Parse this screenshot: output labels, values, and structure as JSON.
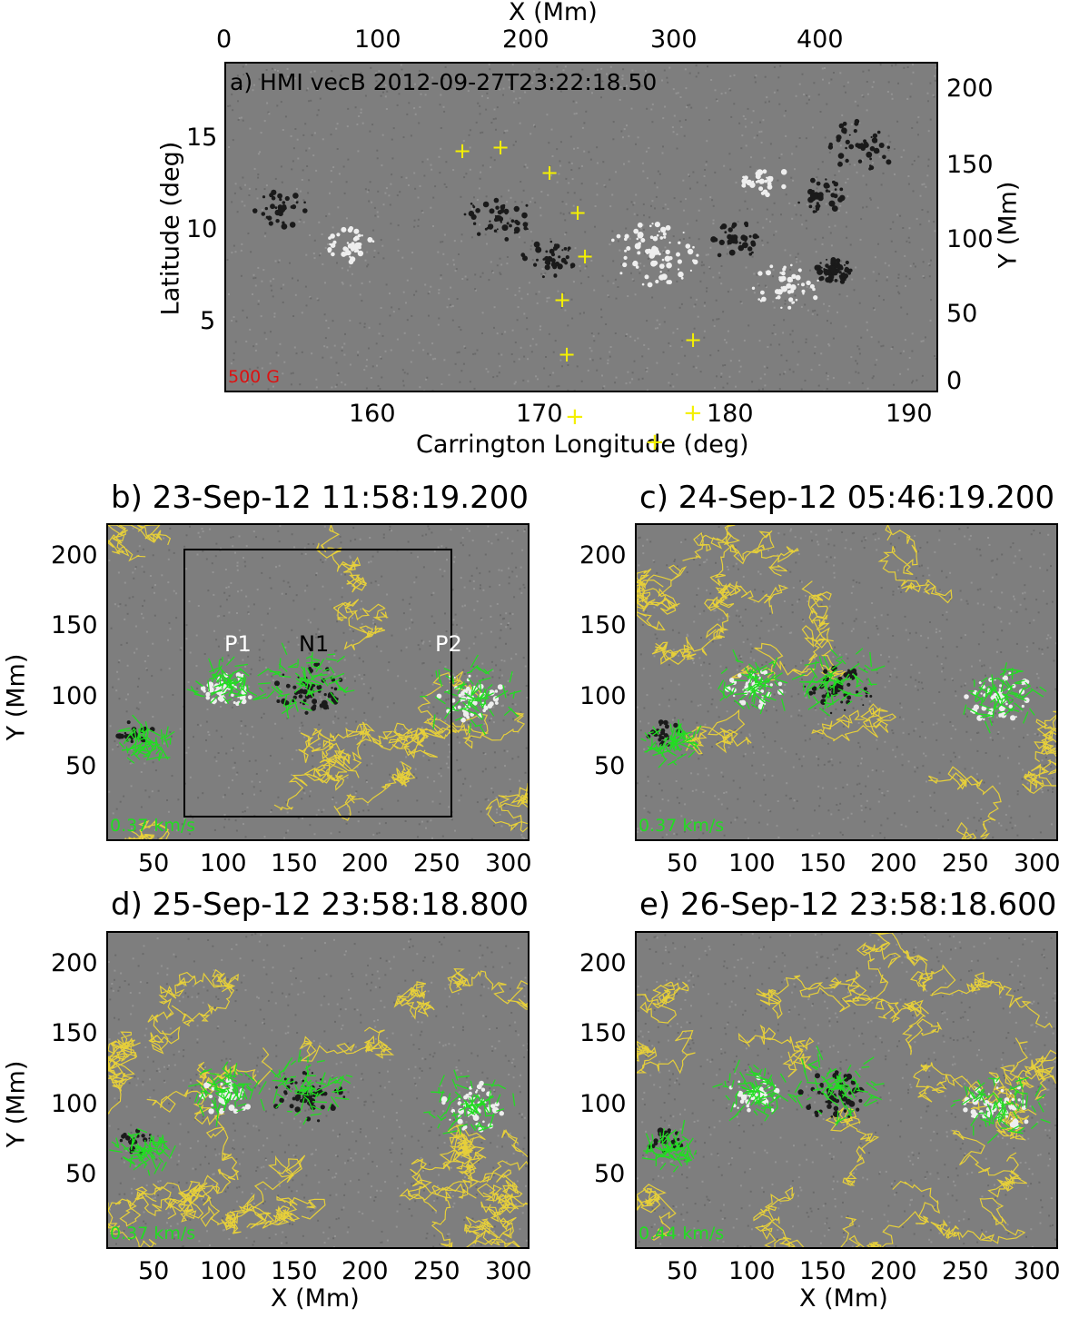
{
  "panel_a": {
    "title": "a) HMI vecB 2012-09-27T23:22:18.50",
    "scale_label": "500 G",
    "top_axis_title": "X (Mm)",
    "top_ticks": [
      "0",
      "100",
      "200",
      "300",
      "400"
    ],
    "bottom_axis_title": "Carrington Longitude (deg)",
    "bottom_ticks": [
      "160",
      "170",
      "180",
      "190"
    ],
    "left_axis_title": "Latitude (deg)",
    "left_ticks": [
      "15",
      "10",
      "5"
    ],
    "right_axis_title": "Y (Mm)",
    "right_ticks": [
      "200",
      "150",
      "100",
      "50",
      "0"
    ],
    "colors": {
      "positive_vectors": "#dd1111",
      "negative_vectors": "#1122dd",
      "markers": "#f4f000"
    }
  },
  "panel_b": {
    "title": "b) 23-Sep-12 11:58:19.200",
    "scale_label": "0.37 km/s",
    "labels": {
      "p1": "P1",
      "n1": "N1",
      "p2": "P2"
    },
    "y_axis_title": "Y (Mm)",
    "y_ticks": [
      "200",
      "150",
      "100",
      "50"
    ],
    "x_ticks": [
      "50",
      "100",
      "150",
      "200",
      "250",
      "300"
    ]
  },
  "panel_c": {
    "title": "c) 24-Sep-12 05:46:19.200",
    "scale_label": "0.37 km/s",
    "y_ticks": [
      "200",
      "150",
      "100",
      "50"
    ],
    "x_ticks": [
      "50",
      "100",
      "150",
      "200",
      "250",
      "300"
    ]
  },
  "panel_d": {
    "title": "d) 25-Sep-12 23:58:18.800",
    "scale_label": "0.37 km/s",
    "y_axis_title": "Y (Mm)",
    "y_ticks": [
      "200",
      "150",
      "100",
      "50"
    ],
    "x_ticks": [
      "50",
      "100",
      "150",
      "200",
      "250",
      "300"
    ],
    "x_axis_title": "X (Mm)"
  },
  "panel_e": {
    "title": "e) 26-Sep-12 23:58:18.600",
    "scale_label": "0.44 km/s",
    "y_ticks": [
      "200",
      "150",
      "100",
      "50"
    ],
    "x_ticks": [
      "50",
      "100",
      "150",
      "200",
      "250",
      "300"
    ],
    "x_axis_title": "X (Mm)"
  },
  "colors": {
    "background_gray": "#7d7d7d",
    "flow_vectors": "#22dd22",
    "contours": "#e6cf3a",
    "box": "#000000"
  }
}
